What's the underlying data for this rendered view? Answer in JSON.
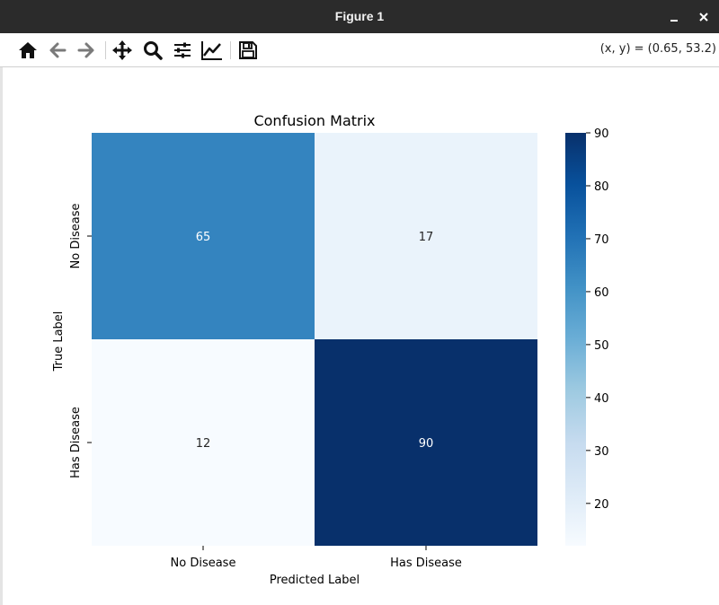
{
  "window": {
    "title": "Figure 1",
    "controls": [
      "minimize",
      "close"
    ]
  },
  "toolbar": {
    "tools": [
      {
        "name": "home-icon",
        "label": "Home"
      },
      {
        "name": "back-icon",
        "label": "Back"
      },
      {
        "name": "forward-icon",
        "label": "Forward"
      },
      {
        "name": "pan-icon",
        "label": "Pan"
      },
      {
        "name": "zoom-icon",
        "label": "Zoom"
      },
      {
        "name": "subplots-icon",
        "label": "Configure subplots"
      },
      {
        "name": "edit-curves-icon",
        "label": "Edit axis"
      },
      {
        "name": "save-icon",
        "label": "Save"
      }
    ],
    "coords": "(x, y) = (0.65, 53.2)"
  },
  "chart_data": {
    "type": "heatmap",
    "title": "Confusion Matrix",
    "xlabel": "Predicted Label",
    "ylabel": "True Label",
    "x_categories": [
      "No Disease",
      "Has Disease"
    ],
    "y_categories": [
      "No Disease",
      "Has Disease"
    ],
    "values": [
      [
        65,
        17
      ],
      [
        12,
        90
      ]
    ],
    "colormap": "Blues",
    "vmin": 12,
    "vmax": 90,
    "colorbar_ticks": [
      20,
      30,
      40,
      50,
      60,
      70,
      80,
      90
    ],
    "annotations": true
  }
}
